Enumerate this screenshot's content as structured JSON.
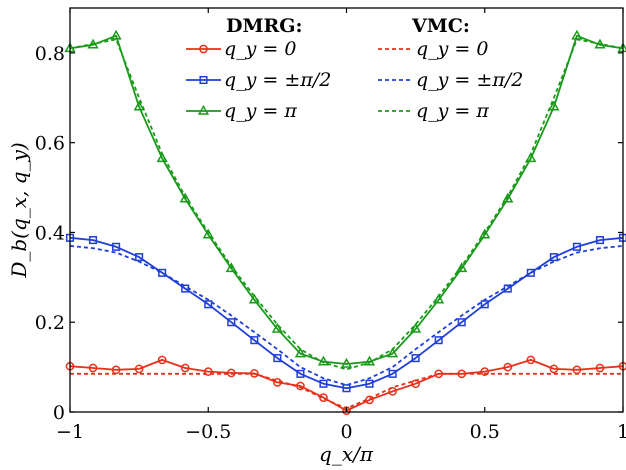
{
  "chart_data": {
    "type": "line",
    "xlabel": "q_x/π",
    "ylabel": "D_b(q_x, q_y)",
    "xlim": [
      -1,
      1
    ],
    "ylim": [
      0,
      0.9
    ],
    "xticks": [
      -1,
      -0.5,
      0,
      0.5,
      1
    ],
    "xtick_labels": [
      "−1",
      "−0.5",
      "0",
      "0.5",
      "1"
    ],
    "yticks": [
      0,
      0.2,
      0.4,
      0.6,
      0.8
    ],
    "ytick_labels": [
      "0",
      "0.2",
      "0.4",
      "0.6",
      "0.8"
    ],
    "grid": false,
    "legend": {
      "placement": "top-center",
      "groups": [
        {
          "title": "DMRG:",
          "entries": [
            "q_y = 0",
            "q_y = ±π/2",
            "q_y = π"
          ]
        },
        {
          "title": "VMC:",
          "entries": [
            "q_y = 0",
            "q_y = ±π/2",
            "q_y = π"
          ]
        }
      ]
    },
    "colors": {
      "qy0": "#e8311a",
      "qypi2": "#1f3fd8",
      "qypi": "#1a9a1a"
    },
    "x": [
      -1,
      -0.9167,
      -0.8333,
      -0.75,
      -0.6667,
      -0.5833,
      -0.5,
      -0.4167,
      -0.3333,
      -0.25,
      -0.1667,
      -0.0833,
      0,
      0.0833,
      0.1667,
      0.25,
      0.3333,
      0.4167,
      0.5,
      0.5833,
      0.6667,
      0.75,
      0.8333,
      0.9167,
      1
    ],
    "series": [
      {
        "name": "DMRG q_y = 0",
        "method": "DMRG",
        "style": "solid",
        "marker": "circle",
        "color": "#e8311a",
        "values": [
          0.102,
          0.098,
          0.094,
          0.096,
          0.116,
          0.098,
          0.09,
          0.087,
          0.086,
          0.066,
          0.058,
          0.032,
          0.003,
          0.027,
          0.046,
          0.063,
          0.085,
          0.085,
          0.09,
          0.1,
          0.116,
          0.096,
          0.094,
          0.098,
          0.102
        ]
      },
      {
        "name": "DMRG q_y = ±π/2",
        "method": "DMRG",
        "style": "solid",
        "marker": "square",
        "color": "#1f3fd8",
        "values": [
          0.388,
          0.383,
          0.368,
          0.345,
          0.31,
          0.275,
          0.24,
          0.2,
          0.16,
          0.12,
          0.085,
          0.063,
          0.053,
          0.063,
          0.085,
          0.12,
          0.16,
          0.2,
          0.24,
          0.275,
          0.31,
          0.345,
          0.368,
          0.383,
          0.388
        ]
      },
      {
        "name": "DMRG q_y = π",
        "method": "DMRG",
        "style": "solid",
        "marker": "triangle",
        "color": "#1a9a1a",
        "values": [
          0.81,
          0.818,
          0.838,
          0.68,
          0.565,
          0.475,
          0.395,
          0.32,
          0.25,
          0.185,
          0.13,
          0.112,
          0.107,
          0.112,
          0.13,
          0.185,
          0.25,
          0.32,
          0.395,
          0.475,
          0.565,
          0.68,
          0.838,
          0.818,
          0.81
        ]
      },
      {
        "name": "VMC q_y = 0",
        "method": "VMC",
        "style": "dashed",
        "marker": "none",
        "color": "#e8311a",
        "values": [
          0.085,
          0.085,
          0.085,
          0.085,
          0.085,
          0.085,
          0.085,
          0.085,
          0.085,
          0.07,
          0.055,
          0.03,
          0.008,
          0.03,
          0.055,
          0.07,
          0.085,
          0.085,
          0.085,
          0.085,
          0.085,
          0.085,
          0.085,
          0.085,
          0.085
        ]
      },
      {
        "name": "VMC q_y = ±π/2",
        "method": "VMC",
        "style": "dashed",
        "marker": "none",
        "color": "#1f3fd8",
        "values": [
          0.37,
          0.365,
          0.355,
          0.335,
          0.31,
          0.28,
          0.25,
          0.215,
          0.178,
          0.14,
          0.1,
          0.075,
          0.06,
          0.075,
          0.1,
          0.14,
          0.178,
          0.215,
          0.25,
          0.28,
          0.31,
          0.335,
          0.355,
          0.365,
          0.37
        ]
      },
      {
        "name": "VMC q_y = π",
        "method": "VMC",
        "style": "dashed",
        "marker": "none",
        "color": "#1a9a1a",
        "values": [
          0.81,
          0.82,
          0.83,
          0.7,
          0.575,
          0.48,
          0.4,
          0.325,
          0.258,
          0.195,
          0.14,
          0.11,
          0.095,
          0.11,
          0.14,
          0.195,
          0.258,
          0.325,
          0.4,
          0.48,
          0.575,
          0.7,
          0.83,
          0.82,
          0.81
        ]
      }
    ]
  }
}
